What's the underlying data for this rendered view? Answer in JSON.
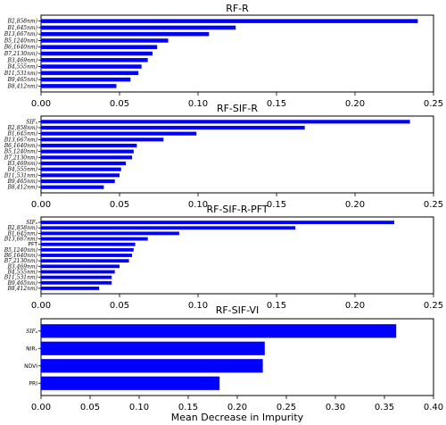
{
  "figure": {
    "xlabel": "Mean Decrease in Impurity",
    "bar_color": "#0000ff",
    "axis_color": "#000000"
  },
  "chart_data": [
    {
      "type": "bar",
      "orientation": "horizontal",
      "title": "RF-R",
      "xlabel": "",
      "xlim": [
        0,
        0.25
      ],
      "xticks": [
        "0.00",
        "0.05",
        "0.10",
        "0.15",
        "0.20",
        "0.25"
      ],
      "xtick_values": [
        0,
        0.05,
        0.1,
        0.15,
        0.2,
        0.25
      ],
      "categories": [
        "B2,858nm)",
        "B1,645nm)",
        "B13,667nm)",
        "B5,1240nm)",
        "B6,1640nm)",
        "B7,2130nm)",
        "B3,469nm)",
        "B4,555nm)",
        "B11,531nm)",
        "B9,465nm)",
        "B8,412nm)"
      ],
      "values": [
        0.24,
        0.124,
        0.107,
        0.081,
        0.074,
        0.071,
        0.068,
        0.064,
        0.062,
        0.057,
        0.048
      ]
    },
    {
      "type": "bar",
      "orientation": "horizontal",
      "title": "RF-SIF-R",
      "xlabel": "",
      "xlim": [
        0,
        0.25
      ],
      "xticks": [
        "0.00",
        "0.05",
        "0.10",
        "0.15",
        "0.20",
        "0.25"
      ],
      "xtick_values": [
        0,
        0.05,
        0.1,
        0.15,
        0.2,
        0.25
      ],
      "categories": [
        "SIFₐ",
        "B2,858nm)",
        "B1,645nm)",
        "B13,667nm)",
        "B6,1640nm)",
        "B5,1240nm)",
        "B7,2130nm)",
        "B3,469nm)",
        "B4,555nm)",
        "B11,531nm)",
        "B9,465nm)",
        "B8,412nm)"
      ],
      "values": [
        0.235,
        0.168,
        0.099,
        0.078,
        0.061,
        0.059,
        0.058,
        0.054,
        0.051,
        0.05,
        0.047,
        0.04
      ]
    },
    {
      "type": "bar",
      "orientation": "horizontal",
      "title": "RF-SIF-R-PFT",
      "xlabel": "",
      "xlim": [
        0,
        0.25
      ],
      "xticks": [
        "0.00",
        "0.05",
        "0.10",
        "0.15",
        "0.20",
        "0.25"
      ],
      "xtick_values": [
        0,
        0.05,
        0.1,
        0.15,
        0.2,
        0.25
      ],
      "categories": [
        "SIFₐ",
        "B2,858nm)",
        "B1,645nm)",
        "B13,667nm)",
        "PFT",
        "B5,1240nm)",
        "B6,1640nm)",
        "B7,2130nm)",
        "B3,469nm)",
        "B4,555nm)",
        "B11,531nm)",
        "B9,465nm)",
        "B8,412nm)"
      ],
      "values": [
        0.225,
        0.162,
        0.088,
        0.068,
        0.06,
        0.059,
        0.058,
        0.056,
        0.05,
        0.047,
        0.045,
        0.045,
        0.037
      ]
    },
    {
      "type": "bar",
      "orientation": "horizontal",
      "title": "RF-SIF-VI",
      "xlabel": "Mean Decrease in Impurity",
      "xlim": [
        0,
        0.4
      ],
      "xticks": [
        "0.00",
        "0.05",
        "0.10",
        "0.15",
        "0.20",
        "0.25",
        "0.30",
        "0.35",
        "0.40"
      ],
      "xtick_values": [
        0,
        0.05,
        0.1,
        0.15,
        0.2,
        0.25,
        0.3,
        0.35,
        0.4
      ],
      "categories": [
        "SIFₐ",
        "NIRᵥ",
        "NDVI",
        "PRI"
      ],
      "values": [
        0.362,
        0.228,
        0.226,
        0.182
      ]
    }
  ]
}
